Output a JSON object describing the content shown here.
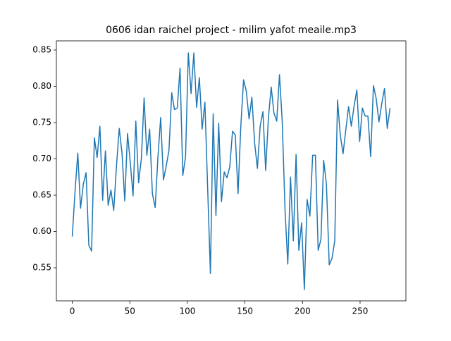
{
  "chart_data": {
    "type": "line",
    "title": "0606 idan raichel project - milim yafot meaile.mp3",
    "x": [
      0,
      2.4,
      4.8,
      7.2,
      9.6,
      12,
      14.4,
      16.8,
      19.2,
      21.6,
      24,
      26.4,
      28.8,
      31.2,
      33.6,
      36,
      38.4,
      40.8,
      43.2,
      45.6,
      48,
      50.4,
      52.8,
      55.2,
      57.6,
      60,
      62.4,
      64.8,
      67.2,
      69.6,
      72,
      74.4,
      76.8,
      79.2,
      81.6,
      84,
      86.4,
      88.8,
      91.2,
      93.6,
      96,
      98.4,
      100.8,
      103.2,
      105.6,
      108,
      110.4,
      112.8,
      115.2,
      117.6,
      120,
      122.4,
      124.8,
      127.2,
      129.6,
      132,
      134.4,
      136.8,
      139.2,
      141.6,
      144,
      146.4,
      148.8,
      151.2,
      153.6,
      156,
      158.4,
      160.8,
      163.2,
      165.6,
      168,
      170.4,
      172.8,
      175.2,
      177.6,
      180,
      182.4,
      184.8,
      187.2,
      189.6,
      192,
      194.4,
      196.8,
      199.2,
      201.6,
      204,
      206.4,
      208.8,
      211.2,
      213.6,
      216,
      218.4,
      220.8,
      223.2,
      225.6,
      228,
      230.4,
      232.8,
      235.2,
      237.6,
      240,
      242.4,
      244.8,
      247.2,
      249.6,
      252,
      254.4,
      256.8,
      259.2,
      261.6,
      264,
      266.4,
      268.8,
      271.2,
      273.6,
      276
    ],
    "series": [
      {
        "color": "#1f77b4",
        "values": [
          0.593,
          0.655,
          0.708,
          0.632,
          0.665,
          0.681,
          0.581,
          0.573,
          0.729,
          0.702,
          0.745,
          0.643,
          0.711,
          0.636,
          0.657,
          0.629,
          0.69,
          0.742,
          0.708,
          0.642,
          0.735,
          0.695,
          0.649,
          0.752,
          0.667,
          0.7,
          0.784,
          0.705,
          0.741,
          0.652,
          0.633,
          0.702,
          0.757,
          0.671,
          0.69,
          0.712,
          0.791,
          0.768,
          0.77,
          0.825,
          0.677,
          0.703,
          0.846,
          0.79,
          0.846,
          0.771,
          0.812,
          0.741,
          0.778,
          0.66,
          0.542,
          0.762,
          0.622,
          0.749,
          0.641,
          0.682,
          0.674,
          0.689,
          0.738,
          0.733,
          0.652,
          0.745,
          0.809,
          0.793,
          0.755,
          0.785,
          0.722,
          0.687,
          0.745,
          0.765,
          0.684,
          0.757,
          0.799,
          0.763,
          0.752,
          0.816,
          0.751,
          0.63,
          0.555,
          0.675,
          0.587,
          0.706,
          0.574,
          0.612,
          0.52,
          0.644,
          0.621,
          0.705,
          0.705,
          0.574,
          0.589,
          0.698,
          0.664,
          0.554,
          0.563,
          0.587,
          0.781,
          0.733,
          0.707,
          0.74,
          0.772,
          0.745,
          0.773,
          0.795,
          0.724,
          0.77,
          0.759,
          0.759,
          0.703,
          0.801,
          0.783,
          0.751,
          0.776,
          0.797,
          0.742,
          0.77
        ]
      }
    ],
    "xlim": [
      -13.8,
      289.8
    ],
    "ylim": [
      0.5044,
      0.8626
    ],
    "xticks": [
      0,
      50,
      100,
      150,
      200,
      250
    ],
    "yticks": [
      0.55,
      {
        "value": 0.6,
        "label": "0.60"
      },
      0.65,
      {
        "value": 0.7,
        "label": "0.70"
      },
      0.75,
      {
        "value": 0.8,
        "label": "0.80"
      },
      0.85
    ]
  }
}
